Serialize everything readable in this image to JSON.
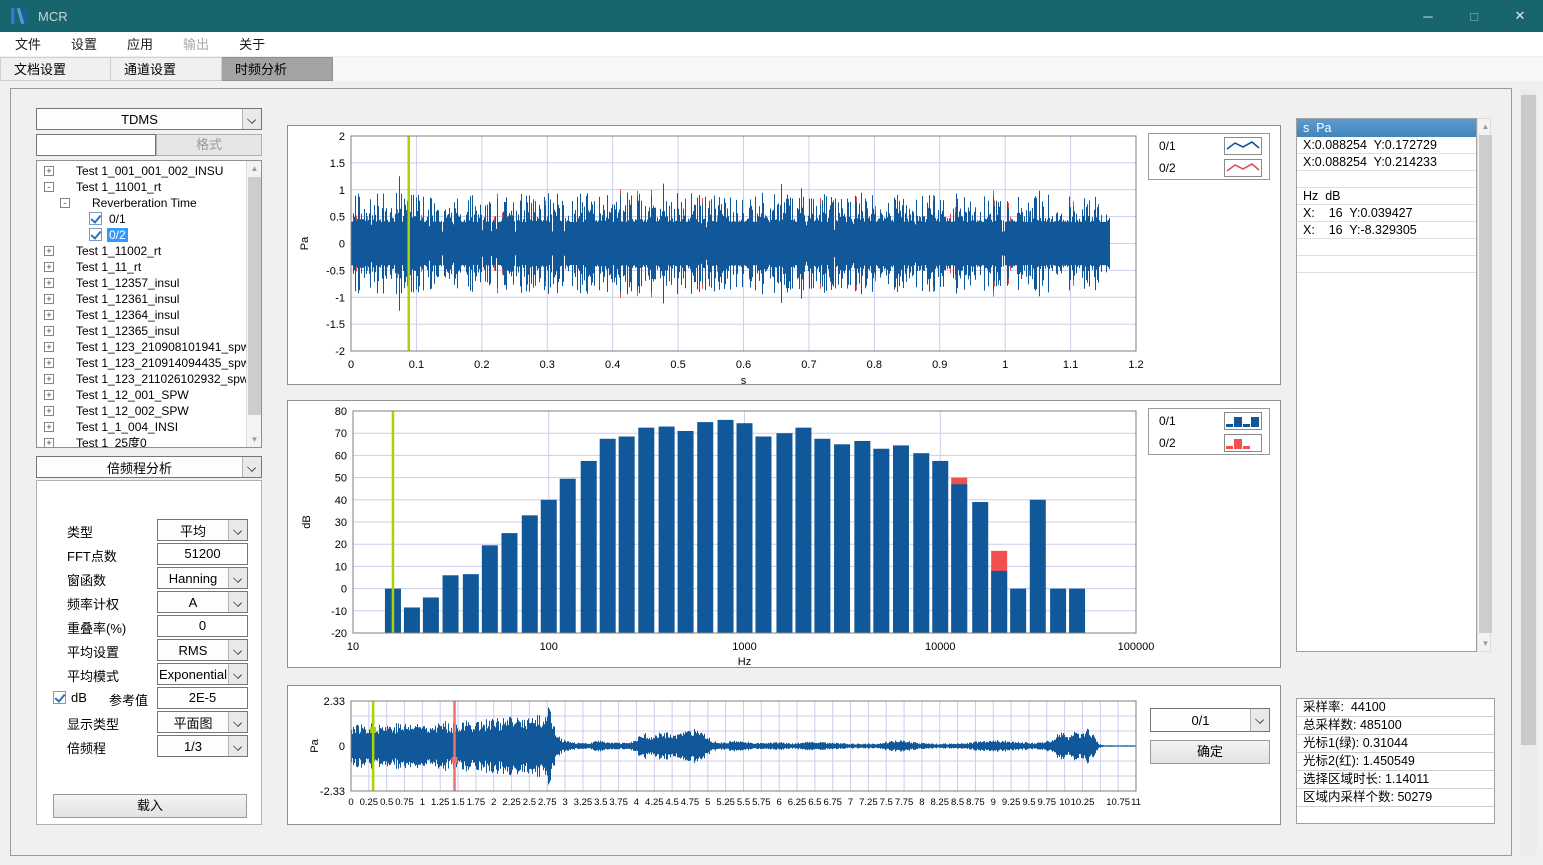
{
  "window": {
    "title": "MCR",
    "controls": [
      "minimize",
      "maximize",
      "close"
    ]
  },
  "menu": {
    "items": [
      {
        "label": "文件",
        "enabled": true
      },
      {
        "label": "设置",
        "enabled": true
      },
      {
        "label": "应用",
        "enabled": true
      },
      {
        "label": "输出",
        "enabled": false
      },
      {
        "label": "关于",
        "enabled": true
      }
    ]
  },
  "tabs": [
    {
      "label": "文档设置",
      "active": false
    },
    {
      "label": "通道设置",
      "active": false
    },
    {
      "label": "时频分析",
      "active": true
    }
  ],
  "sidebar": {
    "format_dropdown": "TDMS",
    "filter_input": "",
    "format_button": "格式",
    "tree": [
      {
        "label": "Test 1_001_001_002_INSU",
        "expand": "+",
        "level": 0
      },
      {
        "label": "Test 1_11001_rt",
        "expand": "-",
        "level": 0
      },
      {
        "label": "Reverberation Time",
        "expand": "-",
        "level": 1
      },
      {
        "label": "0/1",
        "level": 2,
        "checkbox": true,
        "checked": true
      },
      {
        "label": "0/2",
        "level": 2,
        "checkbox": true,
        "checked": true,
        "selected": true
      },
      {
        "label": "Test 1_11002_rt",
        "expand": "+",
        "level": 0
      },
      {
        "label": "Test 1_11_rt",
        "expand": "+",
        "level": 0
      },
      {
        "label": "Test 1_12357_insul",
        "expand": "+",
        "level": 0
      },
      {
        "label": "Test 1_12361_insul",
        "expand": "+",
        "level": 0
      },
      {
        "label": "Test 1_12364_insul",
        "expand": "+",
        "level": 0
      },
      {
        "label": "Test 1_12365_insul",
        "expand": "+",
        "level": 0
      },
      {
        "label": "Test 1_123_210908101941_spw",
        "expand": "+",
        "level": 0
      },
      {
        "label": "Test 1_123_210914094435_spw",
        "expand": "+",
        "level": 0
      },
      {
        "label": "Test 1_123_211026102932_spw",
        "expand": "+",
        "level": 0
      },
      {
        "label": "Test 1_12_001_SPW",
        "expand": "+",
        "level": 0
      },
      {
        "label": "Test 1_12_002_SPW",
        "expand": "+",
        "level": 0
      },
      {
        "label": "Test 1_1_004_INSI",
        "expand": "+",
        "level": 0
      },
      {
        "label": "Test 1_25度0",
        "expand": "+",
        "level": 0
      }
    ],
    "analysis_dropdown": "倍频程分析",
    "params": [
      {
        "label": "类型",
        "control": "select",
        "value": "平均"
      },
      {
        "label": "FFT点数",
        "control": "input",
        "value": "51200"
      },
      {
        "label": "窗函数",
        "control": "select",
        "value": "Hanning"
      },
      {
        "label": "频率计权",
        "control": "select",
        "value": "A"
      },
      {
        "label": "重叠率(%)",
        "control": "input",
        "value": "0"
      },
      {
        "label": "平均设置",
        "control": "select",
        "value": "RMS"
      },
      {
        "label": "平均模式",
        "control": "select",
        "value": "Exponential"
      },
      {
        "label": "参考值",
        "prefix_checkbox": "dB",
        "checked": true,
        "control": "input",
        "value": "2E-5"
      },
      {
        "label": "显示类型",
        "control": "select",
        "value": "平面图"
      },
      {
        "label": "倍频程",
        "control": "select",
        "value": "1/3"
      }
    ],
    "load_button": "载入"
  },
  "legend_top": [
    {
      "label": "0/1",
      "icon": "line-wave-blue",
      "color": "#11589a"
    },
    {
      "label": "0/2",
      "icon": "line-wave-red",
      "color": "#e34f4f"
    }
  ],
  "legend_mid": [
    {
      "label": "0/1",
      "icon": "bars-blue",
      "color": "#11589a"
    },
    {
      "label": "0/2",
      "icon": "bars-red",
      "color": "#f25050"
    }
  ],
  "cursor_panel": {
    "header": "s  Pa",
    "rows": [
      "X:0.088254  Y:0.172729",
      "X:0.088254  Y:0.214233",
      "",
      "Hz  dB",
      "X:    16  Y:0.039427",
      "X:    16  Y:-8.329305",
      "",
      ""
    ]
  },
  "overview_panel": {
    "channel_dropdown": "0/1",
    "confirm_button": "确定",
    "info_rows": [
      "采样率:  44100",
      "总采样数: 485100",
      "光标1(绿): 0.31044",
      "光标2(红): 1.450549",
      "选择区域时长: 1.14011",
      "区域内采样个数: 50279"
    ]
  },
  "colors": {
    "titlebar_teal": "#17666e",
    "series_blue": "#11589a",
    "series_red": "#f25050",
    "cursor_green": "#a8d400",
    "cursor_red": "#ee7070",
    "selection_blue": "#3399ff",
    "list_header_blue": "#4a8fc4",
    "grid": "#ccccee"
  },
  "chart_data": [
    {
      "id": "time-waveform",
      "type": "line",
      "xlabel": "s",
      "ylabel": "Pa",
      "xlim": [
        0,
        1.2
      ],
      "ylim": [
        -2,
        2
      ],
      "xticks": [
        "0",
        "0.1",
        "0.2",
        "0.3",
        "0.4",
        "0.5",
        "0.6",
        "0.7",
        "0.8",
        "0.9",
        "1",
        "1.1",
        "1.2"
      ],
      "yticks": [
        "2",
        "1.5",
        "1",
        "0.5",
        "0",
        "-0.5",
        "-1",
        "-1.5",
        "-2"
      ],
      "grid": true,
      "legend_position": "top-right-outside",
      "series": [
        {
          "name": "0/1",
          "color": "#11589a",
          "kind": "noise",
          "start": 0,
          "end": 1.159,
          "typical_amp": 0.75,
          "peak_amp": 1.55
        },
        {
          "name": "0/2",
          "color": "#e34f4f",
          "kind": "noise",
          "start": 0,
          "end": 1.159,
          "typical_amp": 0.4,
          "peak_amp": 0.9,
          "mostly_hidden_behind": "0/1"
        }
      ],
      "cursors": [
        {
          "color": "green",
          "x": 0.088254
        }
      ]
    },
    {
      "id": "octave-spectrum",
      "type": "bar",
      "xlabel": "Hz",
      "ylabel": "dB",
      "xscale": "log",
      "xlim": [
        10,
        100000
      ],
      "ylim": [
        -20,
        80
      ],
      "xticks": [
        "10",
        "100",
        "1000",
        "10000",
        "100000"
      ],
      "yticks": [
        "80",
        "70",
        "60",
        "50",
        "40",
        "30",
        "20",
        "10",
        "0",
        "-10",
        "-20"
      ],
      "grid": true,
      "categories": [
        16,
        20,
        25,
        31.5,
        40,
        50,
        63,
        80,
        100,
        125,
        160,
        200,
        250,
        315,
        400,
        500,
        630,
        800,
        1000,
        1250,
        1600,
        2000,
        2500,
        3150,
        4000,
        5000,
        6300,
        8000,
        10000,
        12500,
        16000,
        20000,
        25000,
        31500,
        40000,
        50000
      ],
      "series": [
        {
          "name": "0/1",
          "color": "#11589a",
          "values": [
            0,
            -8.5,
            -4,
            6,
            6.5,
            19.5,
            25,
            33,
            40,
            49.5,
            57.5,
            67.5,
            68.5,
            72.5,
            73,
            71,
            75,
            76,
            74.5,
            68.5,
            70,
            72.5,
            67.5,
            65,
            66.5,
            63,
            64.5,
            61,
            57.5,
            47,
            39,
            8,
            0,
            40,
            0,
            0
          ]
        },
        {
          "name": "0/2",
          "color": "#f25050",
          "values": [
            -8.329305,
            null,
            null,
            null,
            null,
            null,
            null,
            null,
            null,
            null,
            null,
            null,
            null,
            null,
            null,
            null,
            null,
            null,
            null,
            null,
            null,
            null,
            null,
            null,
            null,
            null,
            null,
            null,
            null,
            50,
            null,
            17,
            null,
            null,
            null,
            null
          ]
        }
      ],
      "cursors": [
        {
          "color": "green",
          "x": 16
        }
      ]
    },
    {
      "id": "overview-waveform",
      "type": "line",
      "xlabel": "",
      "ylabel": "Pa",
      "xlim": [
        0,
        11
      ],
      "ylim": [
        -2.33,
        2.33
      ],
      "yticks": [
        "2.33",
        "0",
        "-2.33"
      ],
      "xticks": [
        "0",
        "0.25",
        "0.5",
        "0.75",
        "1",
        "1.25",
        "1.5",
        "1.75",
        "2",
        "2.25",
        "2.5",
        "2.75",
        "3",
        "3.25",
        "3.5",
        "3.75",
        "4",
        "4.25",
        "4.5",
        "4.75",
        "5",
        "5.25",
        "5.5",
        "5.75",
        "6",
        "6.25",
        "6.5",
        "6.75",
        "7",
        "7.25",
        "7.5",
        "7.75",
        "8",
        "8.25",
        "8.5",
        "8.75",
        "9",
        "9.25",
        "9.5",
        "9.75",
        "10",
        "10.25",
        "10.75",
        "11"
      ],
      "grid": true,
      "series": [
        {
          "name": "0/1",
          "color": "#11589a",
          "kind": "noise-envelope"
        }
      ],
      "envelope": [
        [
          0,
          1.1
        ],
        [
          0.5,
          1.15
        ],
        [
          1.0,
          1.2
        ],
        [
          1.5,
          1.25
        ],
        [
          2.0,
          1.4
        ],
        [
          2.5,
          1.5
        ],
        [
          2.7,
          1.6
        ],
        [
          2.78,
          2.25
        ],
        [
          2.85,
          0.9
        ],
        [
          2.95,
          0.35
        ],
        [
          3.1,
          0.18
        ],
        [
          3.3,
          0.15
        ],
        [
          3.45,
          0.3
        ],
        [
          3.6,
          0.22
        ],
        [
          3.8,
          0.15
        ],
        [
          3.95,
          0.25
        ],
        [
          4.1,
          0.7
        ],
        [
          4.2,
          0.45
        ],
        [
          4.35,
          0.75
        ],
        [
          4.5,
          0.6
        ],
        [
          4.65,
          0.7
        ],
        [
          4.8,
          0.85
        ],
        [
          4.95,
          0.6
        ],
        [
          5.05,
          0.3
        ],
        [
          5.2,
          0.2
        ],
        [
          5.4,
          0.28
        ],
        [
          5.6,
          0.2
        ],
        [
          5.8,
          0.16
        ],
        [
          6.0,
          0.2
        ],
        [
          6.2,
          0.16
        ],
        [
          6.4,
          0.22
        ],
        [
          6.6,
          0.2
        ],
        [
          6.8,
          0.16
        ],
        [
          7.0,
          0.13
        ],
        [
          7.2,
          0.13
        ],
        [
          7.4,
          0.15
        ],
        [
          7.6,
          0.3
        ],
        [
          7.8,
          0.25
        ],
        [
          8.0,
          0.15
        ],
        [
          8.2,
          0.13
        ],
        [
          8.4,
          0.13
        ],
        [
          8.6,
          0.15
        ],
        [
          8.8,
          0.25
        ],
        [
          9.0,
          0.3
        ],
        [
          9.2,
          0.28
        ],
        [
          9.4,
          0.2
        ],
        [
          9.6,
          0.17
        ],
        [
          9.8,
          0.3
        ],
        [
          9.95,
          0.8
        ],
        [
          10.05,
          0.55
        ],
        [
          10.15,
          0.8
        ],
        [
          10.25,
          0.65
        ],
        [
          10.33,
          0.95
        ],
        [
          10.42,
          0.45
        ],
        [
          10.48,
          0.1
        ],
        [
          10.55,
          0.03
        ],
        [
          11,
          0.03
        ]
      ],
      "cursors": [
        {
          "color": "green",
          "x": 0.31044
        },
        {
          "color": "red",
          "x": 1.450549
        }
      ]
    }
  ]
}
